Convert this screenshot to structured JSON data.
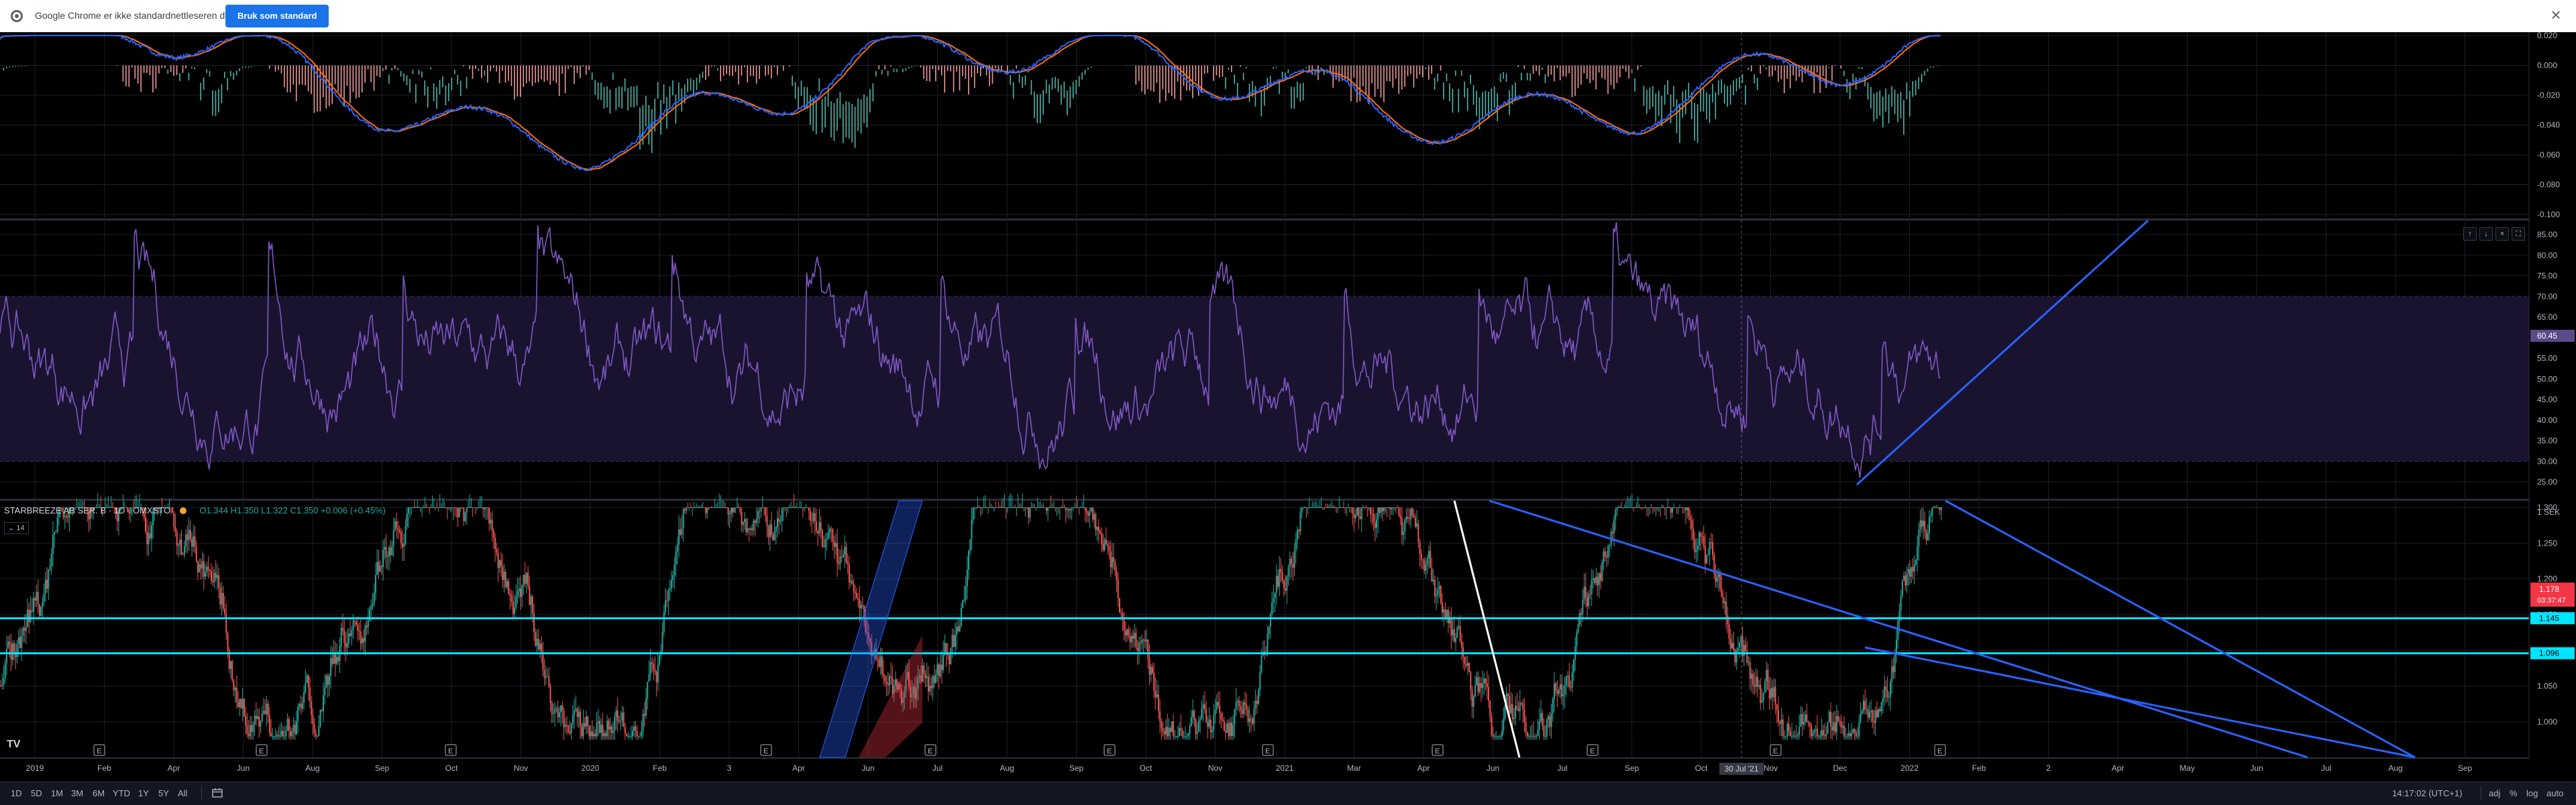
{
  "browser_infobar": {
    "message": "Google Chrome er ikke standardnettleseren din",
    "button_label": "Bruk som standard",
    "close_glyph": "×"
  },
  "colors": {
    "up": "#26a69a",
    "down": "#ef5350",
    "macd": "#2962ff",
    "signal": "#ff6d00",
    "rsi": "#7e57c2",
    "cyan_level": "#00e5ff",
    "trendline": "#2962ff",
    "price_tag": "#f23645"
  },
  "macd_pane": {
    "axis_labels": [
      "0.020",
      "0.000",
      "-0.020",
      "-0.040",
      "-0.060",
      "-0.080",
      "-0.100"
    ],
    "axis_values": [
      0.02,
      0.0,
      -0.02,
      -0.04,
      -0.06,
      -0.08,
      -0.1
    ]
  },
  "rsi_pane": {
    "axis_labels": [
      "85.00",
      "80.00",
      "75.00",
      "70.00",
      "65.00",
      "60.00",
      "55.00",
      "50.00",
      "45.00",
      "40.00",
      "35.00",
      "30.00",
      "25.00"
    ],
    "axis_values": [
      85,
      80,
      75,
      70,
      65,
      60,
      55,
      50,
      45,
      40,
      35,
      30,
      25
    ],
    "current_value": "60.45",
    "pane_buttons": [
      "↑",
      "↓",
      "×",
      "⛶"
    ]
  },
  "price_pane": {
    "legend": {
      "symbol": "STARBREEZE AB SER. B",
      "interval": "1D",
      "exchange": "OMXSTO",
      "ohlc": "O1.344 H1.350 L1.322 C1.350 +0.006 (+0.45%)"
    },
    "indicator_badge": "⌄ 14",
    "axis_labels": [
      "1.300",
      "1.250",
      "1.200",
      "1.150",
      "1.100",
      "1.050",
      "1.000"
    ],
    "axis_values": [
      1.3,
      1.25,
      1.2,
      1.15,
      1.1,
      1.05,
      1.0
    ],
    "top_label": "1 SEK",
    "last_price": "1.178",
    "countdown": "03:37:47",
    "level_1": "1.145",
    "level_2": "1.096",
    "earnings_marker": "E"
  },
  "time_axis": {
    "labels": [
      "2019",
      "Feb",
      "Apr",
      "Jun",
      "Aug",
      "Sep",
      "Oct",
      "Nov",
      "2020",
      "Feb",
      "3",
      "Apr",
      "Jun",
      "Jul",
      "Aug",
      "Sep",
      "Oct",
      "Nov",
      "2021",
      "Mar",
      "Apr",
      "Jun",
      "Jul",
      "Sep",
      "Oct",
      "Nov",
      "Dec",
      "2022",
      "Feb",
      "2",
      "Apr",
      "May",
      "Jun",
      "Jul",
      "Aug",
      "Sep"
    ],
    "crosshair_label": "30 Jul '21"
  },
  "bottom_bar": {
    "ranges": [
      "1D",
      "5D",
      "1M",
      "3M",
      "6M",
      "YTD",
      "1Y",
      "5Y",
      "All"
    ],
    "calendar_icon": "calendar-range-icon",
    "clock": "14:17:02 (UTC+1)",
    "options": [
      "adj",
      "%",
      "log",
      "auto"
    ]
  },
  "logo": "TV"
}
